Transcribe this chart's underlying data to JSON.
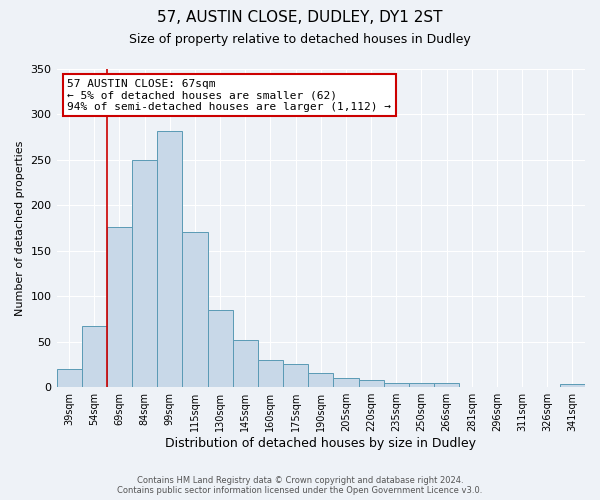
{
  "title": "57, AUSTIN CLOSE, DUDLEY, DY1 2ST",
  "subtitle": "Size of property relative to detached houses in Dudley",
  "xlabel": "Distribution of detached houses by size in Dudley",
  "ylabel": "Number of detached properties",
  "categories": [
    "39sqm",
    "54sqm",
    "69sqm",
    "84sqm",
    "99sqm",
    "115sqm",
    "130sqm",
    "145sqm",
    "160sqm",
    "175sqm",
    "190sqm",
    "205sqm",
    "220sqm",
    "235sqm",
    "250sqm",
    "266sqm",
    "281sqm",
    "296sqm",
    "311sqm",
    "326sqm",
    "341sqm"
  ],
  "values": [
    20,
    67,
    176,
    250,
    282,
    171,
    85,
    52,
    30,
    25,
    16,
    10,
    8,
    5,
    5,
    5,
    0,
    0,
    0,
    0,
    3
  ],
  "bar_color": "#c8d8e8",
  "bar_edge_color": "#5a9ab5",
  "vline_index": 2,
  "vline_color": "#cc0000",
  "ylim": [
    0,
    350
  ],
  "yticks": [
    0,
    50,
    100,
    150,
    200,
    250,
    300,
    350
  ],
  "annotation_line1": "57 AUSTIN CLOSE: 67sqm",
  "annotation_line2": "← 5% of detached houses are smaller (62)",
  "annotation_line3": "94% of semi-detached houses are larger (1,112) →",
  "annotation_box_edgecolor": "#cc0000",
  "footer_line1": "Contains HM Land Registry data © Crown copyright and database right 2024.",
  "footer_line2": "Contains public sector information licensed under the Open Government Licence v3.0.",
  "background_color": "#eef2f7",
  "title_fontsize": 11,
  "subtitle_fontsize": 9,
  "annotation_fontsize": 8,
  "ylabel_fontsize": 8,
  "xlabel_fontsize": 9,
  "ytick_fontsize": 8,
  "xtick_fontsize": 7
}
